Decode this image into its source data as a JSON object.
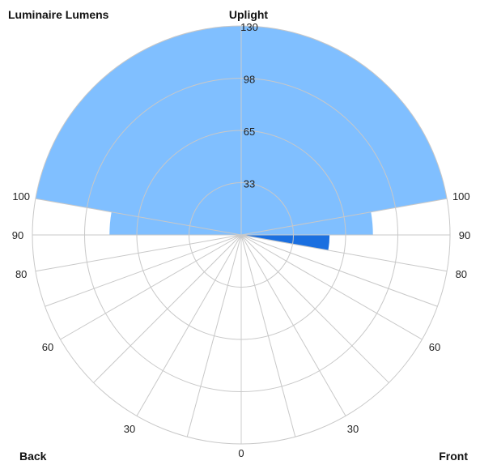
{
  "chart_data": {
    "type": "polar-bar",
    "title": "Uplight",
    "corner_labels": {
      "top_left": "Luminaire Lumens",
      "bottom_left": "Back",
      "bottom_right": "Front"
    },
    "radial_ticks": [
      "33",
      "65",
      "98",
      "130"
    ],
    "radial_tick_values": [
      32.5,
      65,
      97.5,
      130
    ],
    "r_max": 130,
    "angle_ticks": {
      "left": [
        "100",
        "90",
        "80",
        "60",
        "30"
      ],
      "right": [
        "100",
        "90",
        "80",
        "60",
        "30"
      ],
      "bottom": "0"
    },
    "angle_tick_values": [
      0,
      30,
      60,
      80,
      90,
      100
    ],
    "zones": [
      {
        "side": "both",
        "from_deg": 100,
        "to_deg": 180,
        "value": 130,
        "color": "#80bfff"
      },
      {
        "side": "back",
        "from_deg": 90,
        "to_deg": 100,
        "value": 82,
        "color": "#80bfff"
      },
      {
        "side": "front",
        "from_deg": 90,
        "to_deg": 100,
        "value": 82,
        "color": "#80bfff"
      },
      {
        "side": "front",
        "from_deg": 80,
        "to_deg": 90,
        "value": 55,
        "color": "#1a6fe0"
      }
    ],
    "colors": {
      "grid": "#c8c8c8",
      "axis": "#cccccc",
      "uplight": "#80bfff",
      "forward_light": "#1a6fe0"
    }
  }
}
